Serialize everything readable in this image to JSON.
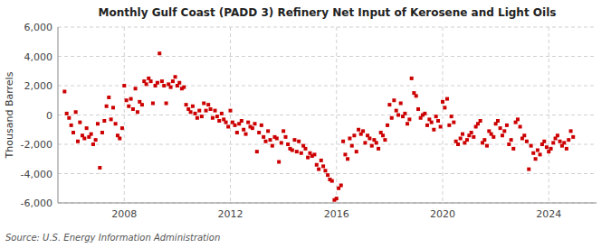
{
  "chart_data": {
    "type": "scatter",
    "title": "Monthly Gulf Coast (PADD 3) Refinery Net Input of Kerosene and Light Oils",
    "ylabel": "Thousand Barrels",
    "source": "Source: U.S. Energy Information Administration",
    "color": "#cc0000",
    "marker": "square",
    "grid": true,
    "xlim": [
      2005.5,
      2025.8
    ],
    "xticks": [
      2008,
      2012,
      2016,
      2020,
      2024
    ],
    "ylim": [
      -6000,
      6000
    ],
    "yticks": [
      {
        "value": -6000,
        "label": "-6,000"
      },
      {
        "value": -4000,
        "label": "-4,000"
      },
      {
        "value": -2000,
        "label": "-2,000"
      },
      0,
      {
        "value": 2000,
        "label": "2,000"
      },
      {
        "value": 4000,
        "label": "4,000"
      },
      {
        "value": 6000,
        "label": "6,000"
      }
    ],
    "x": [
      2005.75,
      2005.83,
      2005.92,
      2006.0,
      2006.08,
      2006.17,
      2006.25,
      2006.33,
      2006.42,
      2006.5,
      2006.58,
      2006.67,
      2006.75,
      2006.83,
      2006.92,
      2007.0,
      2007.08,
      2007.17,
      2007.25,
      2007.33,
      2007.42,
      2007.5,
      2007.58,
      2007.67,
      2007.75,
      2007.83,
      2007.92,
      2008.0,
      2008.08,
      2008.17,
      2008.25,
      2008.33,
      2008.42,
      2008.5,
      2008.58,
      2008.67,
      2008.75,
      2008.83,
      2008.92,
      2009.0,
      2009.08,
      2009.17,
      2009.25,
      2009.33,
      2009.42,
      2009.5,
      2009.58,
      2009.67,
      2009.75,
      2009.83,
      2009.92,
      2010.0,
      2010.08,
      2010.17,
      2010.25,
      2010.33,
      2010.42,
      2010.5,
      2010.58,
      2010.67,
      2010.75,
      2010.83,
      2010.92,
      2011.0,
      2011.08,
      2011.17,
      2011.25,
      2011.33,
      2011.42,
      2011.5,
      2011.58,
      2011.67,
      2011.75,
      2011.83,
      2011.92,
      2012.0,
      2012.08,
      2012.17,
      2012.25,
      2012.33,
      2012.42,
      2012.5,
      2012.58,
      2012.67,
      2012.75,
      2012.83,
      2012.92,
      2013.0,
      2013.08,
      2013.17,
      2013.25,
      2013.33,
      2013.42,
      2013.5,
      2013.58,
      2013.67,
      2013.75,
      2013.83,
      2013.92,
      2014.0,
      2014.08,
      2014.17,
      2014.25,
      2014.33,
      2014.42,
      2014.5,
      2014.58,
      2014.67,
      2014.75,
      2014.83,
      2014.92,
      2015.0,
      2015.08,
      2015.17,
      2015.25,
      2015.33,
      2015.42,
      2015.5,
      2015.58,
      2015.67,
      2015.75,
      2015.83,
      2015.92,
      2016.0,
      2016.08,
      2016.17,
      2016.25,
      2016.33,
      2016.42,
      2016.5,
      2016.58,
      2016.67,
      2016.75,
      2016.83,
      2016.92,
      2017.0,
      2017.08,
      2017.17,
      2017.25,
      2017.33,
      2017.42,
      2017.5,
      2017.58,
      2017.67,
      2017.75,
      2017.83,
      2017.92,
      2018.0,
      2018.08,
      2018.17,
      2018.25,
      2018.33,
      2018.42,
      2018.5,
      2018.58,
      2018.67,
      2018.75,
      2018.83,
      2018.92,
      2019.0,
      2019.08,
      2019.17,
      2019.25,
      2019.33,
      2019.42,
      2019.5,
      2019.58,
      2019.67,
      2019.75,
      2019.83,
      2019.92,
      2020.0,
      2020.08,
      2020.17,
      2020.25,
      2020.33,
      2020.42,
      2020.5,
      2020.58,
      2020.67,
      2020.75,
      2020.83,
      2020.92,
      2021.0,
      2021.08,
      2021.17,
      2021.25,
      2021.33,
      2021.42,
      2021.5,
      2021.58,
      2021.67,
      2021.75,
      2021.83,
      2021.92,
      2022.0,
      2022.08,
      2022.17,
      2022.25,
      2022.33,
      2022.42,
      2022.5,
      2022.58,
      2022.67,
      2022.75,
      2022.83,
      2022.92,
      2023.0,
      2023.08,
      2023.17,
      2023.25,
      2023.33,
      2023.42,
      2023.5,
      2023.58,
      2023.67,
      2023.75,
      2023.83,
      2023.92,
      2024.0,
      2024.08,
      2024.17,
      2024.25,
      2024.33,
      2024.42,
      2024.5,
      2024.58,
      2024.67,
      2024.75,
      2024.83,
      2024.92
    ],
    "values": [
      1600,
      100,
      -200,
      -700,
      -1200,
      200,
      -1800,
      -500,
      -1400,
      -1600,
      -900,
      -1500,
      -1300,
      -2000,
      -1700,
      -600,
      -3600,
      -1200,
      -400,
      600,
      1200,
      -300,
      500,
      -600,
      -1400,
      -1600,
      -900,
      2000,
      1000,
      600,
      1100,
      400,
      1800,
      200,
      900,
      700,
      2300,
      2100,
      2500,
      2300,
      800,
      2000,
      2200,
      4200,
      2300,
      2000,
      800,
      2100,
      1900,
      2300,
      2600,
      2000,
      2200,
      1800,
      1900,
      700,
      400,
      200,
      600,
      100,
      -200,
      300,
      -100,
      800,
      300,
      700,
      400,
      -200,
      300,
      -100,
      -400,
      100,
      -300,
      -500,
      -800,
      300,
      -500,
      -700,
      -1200,
      -600,
      -400,
      -1000,
      -1300,
      -500,
      -800,
      -900,
      -600,
      -2500,
      -1200,
      -700,
      -1500,
      -1800,
      -1100,
      -1700,
      -2100,
      -1500,
      -1600,
      -3200,
      -1900,
      -1100,
      -1500,
      -2000,
      -2300,
      -2400,
      -1700,
      -2500,
      -1800,
      -2600,
      -2100,
      -2300,
      -2900,
      -2600,
      -2800,
      -2700,
      -3400,
      -3700,
      -3100,
      -3500,
      -3800,
      -4100,
      -4400,
      -4500,
      -5800,
      -5700,
      -5000,
      -4800,
      -1800,
      -2700,
      -3000,
      -1600,
      -2100,
      -1400,
      -2500,
      -1000,
      -1300,
      -1100,
      -1900,
      -1400,
      -1600,
      -2100,
      -1700,
      -1900,
      -2300,
      -1200,
      -1400,
      -1700,
      -700,
      700,
      -200,
      1000,
      300,
      0,
      800,
      -100,
      100,
      -600,
      -300,
      2500,
      1500,
      1300,
      400,
      -200,
      0,
      100,
      -700,
      -300,
      -500,
      -1000,
      -100,
      -400,
      -800,
      900,
      500,
      1100,
      -700,
      -100,
      -500,
      -1800,
      -2000,
      -1600,
      -1300,
      -1900,
      -1700,
      -1400,
      -1200,
      -1500,
      -800,
      -600,
      -400,
      -1900,
      -1700,
      -2100,
      -1100,
      -1300,
      -1500,
      -600,
      -400,
      -900,
      -1400,
      -1100,
      -700,
      -2000,
      -1700,
      -2300,
      -500,
      -300,
      -800,
      -1600,
      -1400,
      -1800,
      -3700,
      -2100,
      -2600,
      -3000,
      -2400,
      -2700,
      -2000,
      -1800,
      -2200,
      -2500,
      -2300,
      -1900,
      -1600,
      -1400,
      -1800,
      -2100,
      -1900,
      -2300,
      -1700,
      -1100,
      -1500
    ]
  }
}
